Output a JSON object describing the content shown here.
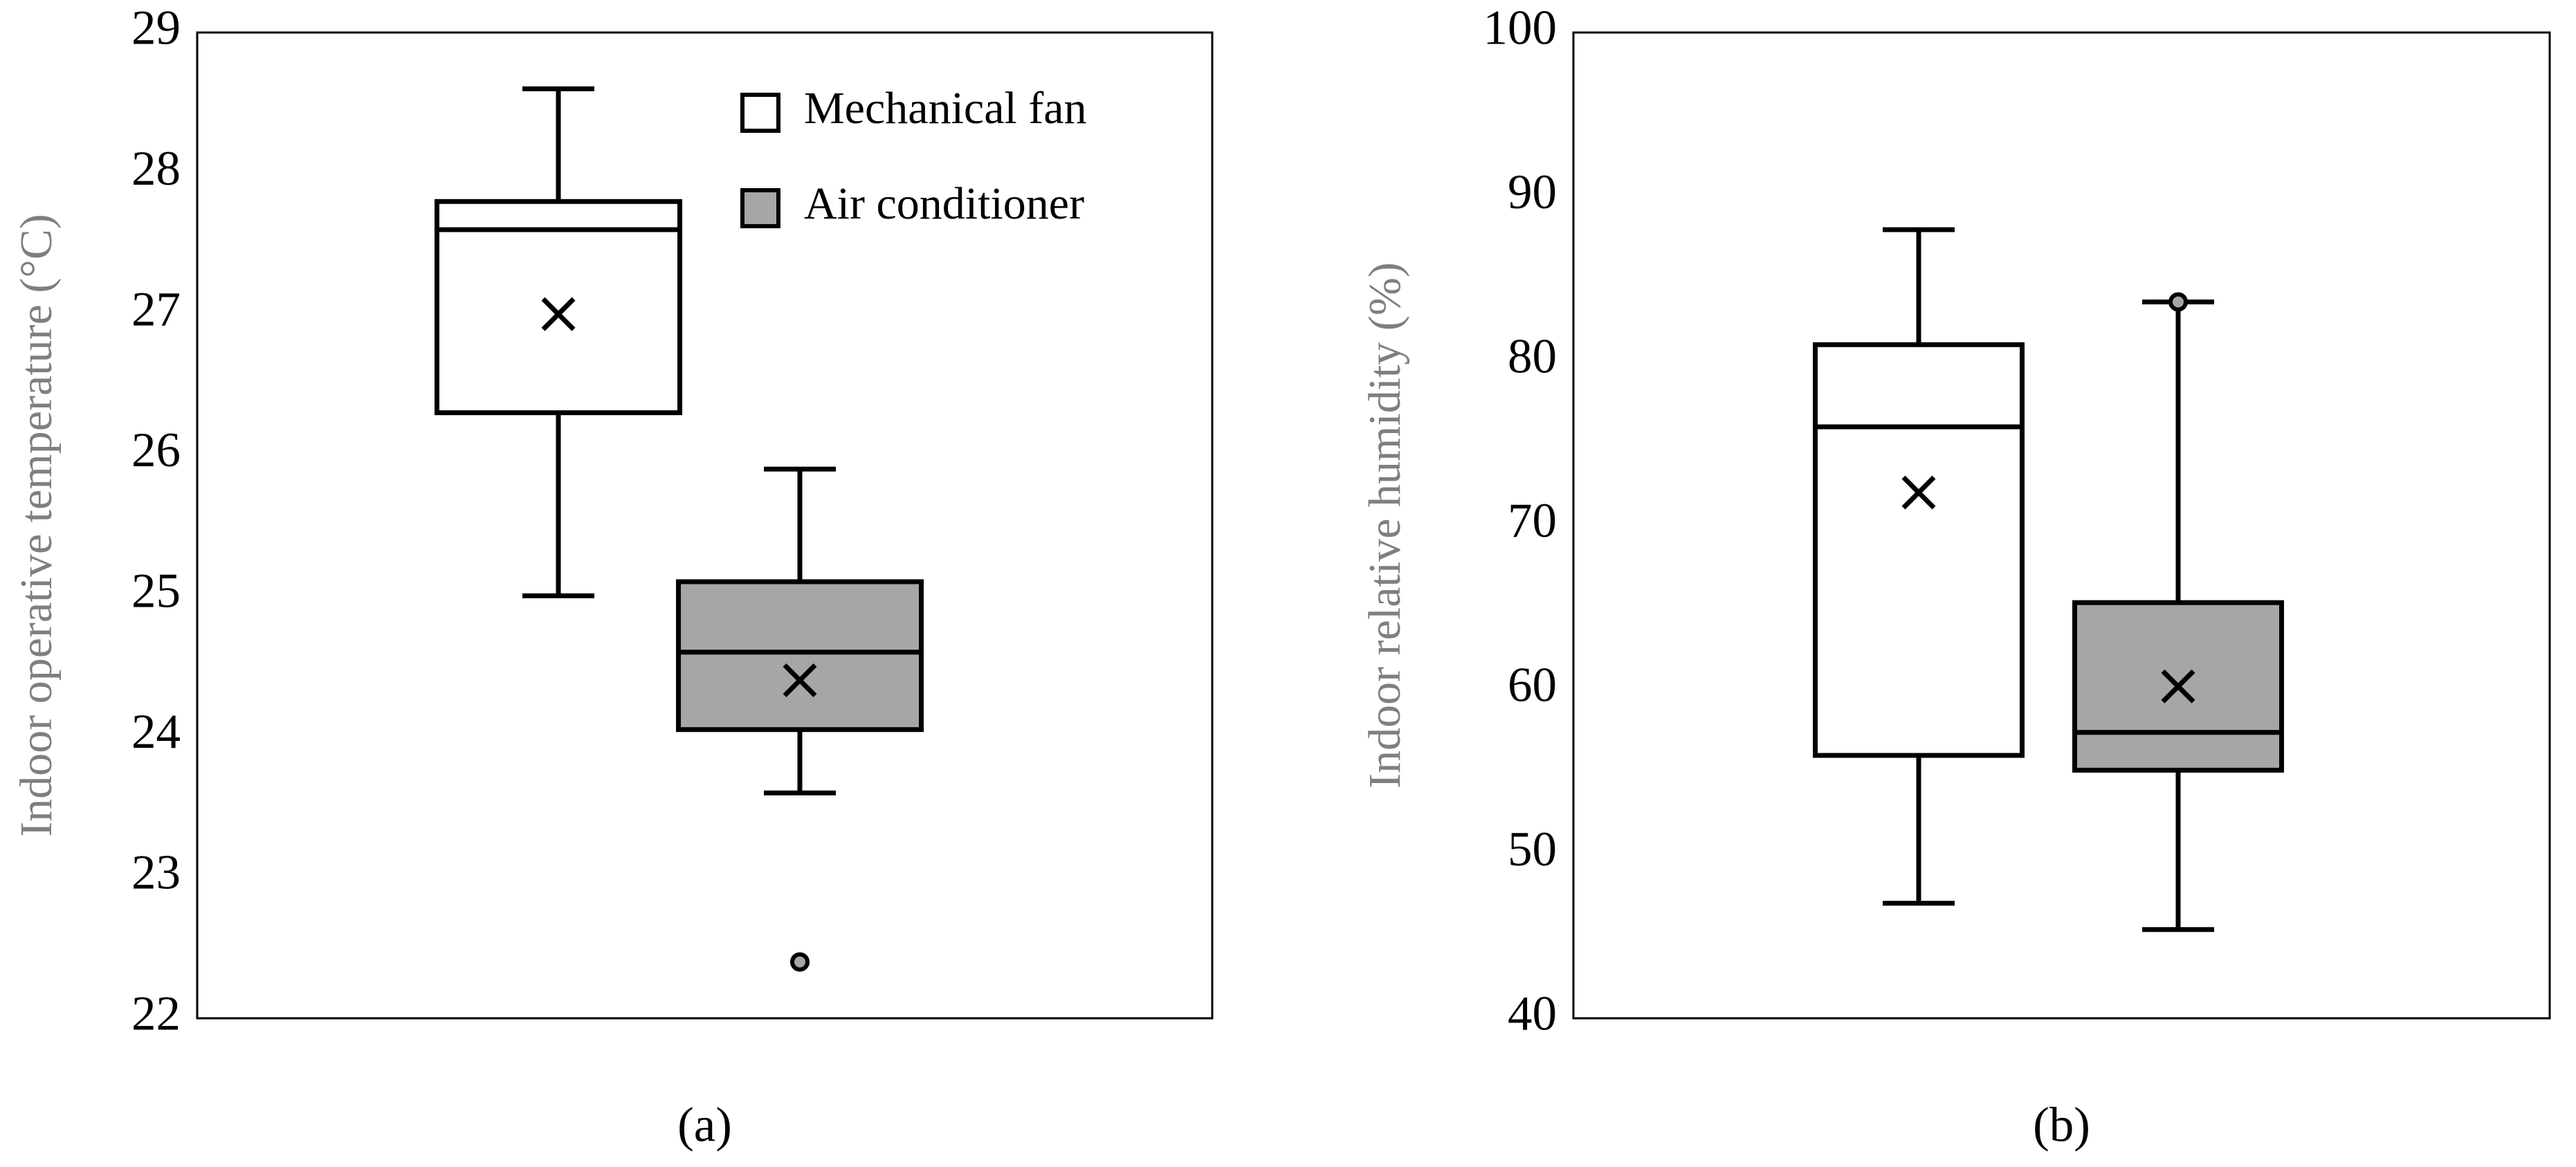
{
  "chart_data": [
    {
      "type": "box",
      "label": "(a)",
      "ylabel": "Indoor operative temperature (°C)",
      "ylim": [
        22,
        29
      ],
      "yticks": [
        22,
        23,
        24,
        25,
        26,
        27,
        28,
        29
      ],
      "legend": "upper right",
      "series": [
        {
          "name": "Mechanical fan",
          "color": "#ffffff",
          "whisker_low": 25.0,
          "q1": 26.3,
          "median": 27.6,
          "q3": 27.8,
          "whisker_high": 28.6,
          "mean": 27.0,
          "outliers": []
        },
        {
          "name": "Air conditioner",
          "color": "#a6a6a6",
          "whisker_low": 23.6,
          "q1": 24.05,
          "median": 24.6,
          "q3": 25.1,
          "whisker_high": 25.9,
          "mean": 24.4,
          "outliers": [
            22.4
          ]
        }
      ]
    },
    {
      "type": "box",
      "label": "(b)",
      "ylabel": "Indoor relative humidity (%)",
      "ylim": [
        40,
        100
      ],
      "yticks": [
        40,
        50,
        60,
        70,
        80,
        90,
        100
      ],
      "series": [
        {
          "color": "#ffffff",
          "whisker_low": 47,
          "q1": 56,
          "median": 76,
          "q3": 81,
          "whisker_high": 88,
          "mean": 72,
          "outliers": []
        },
        {
          "color": "#a6a6a6",
          "whisker_low": 45.4,
          "q1": 55.1,
          "median": 57.4,
          "q3": 65.3,
          "whisker_high": 83.6,
          "mean": 60.2,
          "outliers": [
            83.6
          ]
        }
      ]
    }
  ]
}
